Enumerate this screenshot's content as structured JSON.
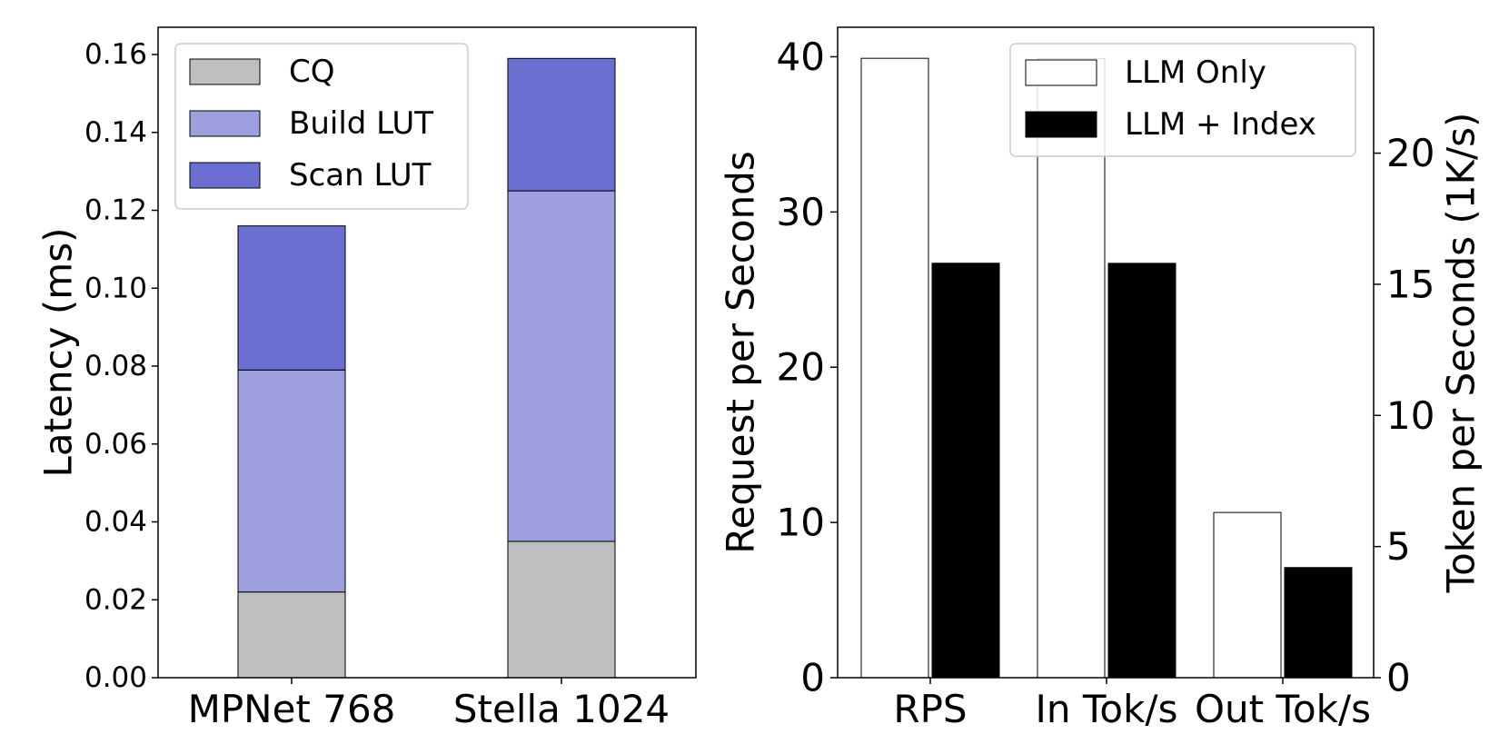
{
  "chart_data": [
    {
      "type": "bar",
      "stacked": true,
      "categories": [
        "MPNet 768",
        "Stella 1024"
      ],
      "series": [
        {
          "name": "CQ",
          "values": [
            0.022,
            0.035
          ],
          "color": "#bfbfbf"
        },
        {
          "name": "Build LUT",
          "values": [
            0.057,
            0.09
          ],
          "color": "#9d9fdf"
        },
        {
          "name": "Scan LUT",
          "values": [
            0.037,
            0.034
          ],
          "color": "#6b6fd1"
        }
      ],
      "xlabel": "",
      "ylabel": "Latency (ms)",
      "ylim": [
        0,
        0.167
      ],
      "yticks": [
        "0.00",
        "0.02",
        "0.04",
        "0.06",
        "0.08",
        "0.10",
        "0.12",
        "0.14",
        "0.16"
      ],
      "legend_position": "top-left",
      "grid": false
    },
    {
      "type": "bar",
      "grouped": true,
      "categories": [
        "RPS",
        "In Tok/s",
        "Out Tok/s"
      ],
      "series": [
        {
          "name": "LLM Only",
          "values": [
            39.9,
            23.6,
            6.3
          ],
          "color": "#ffffff"
        },
        {
          "name": "LLM + Index",
          "values": [
            26.7,
            15.8,
            4.2
          ],
          "color": "#000000"
        }
      ],
      "value_axes": [
        "left",
        "right",
        "right"
      ],
      "xlabel": "",
      "ylabel": "Request per Seconds",
      "ylim": [
        0,
        41.9
      ],
      "yticks": [
        "0",
        "10",
        "20",
        "30",
        "40"
      ],
      "y2label": "Token per Seconds (1K/s)",
      "y2lim": [
        0,
        24.8
      ],
      "y2ticks": [
        "0",
        "5",
        "10",
        "15",
        "20"
      ],
      "legend_position": "top-right",
      "grid": false
    }
  ]
}
